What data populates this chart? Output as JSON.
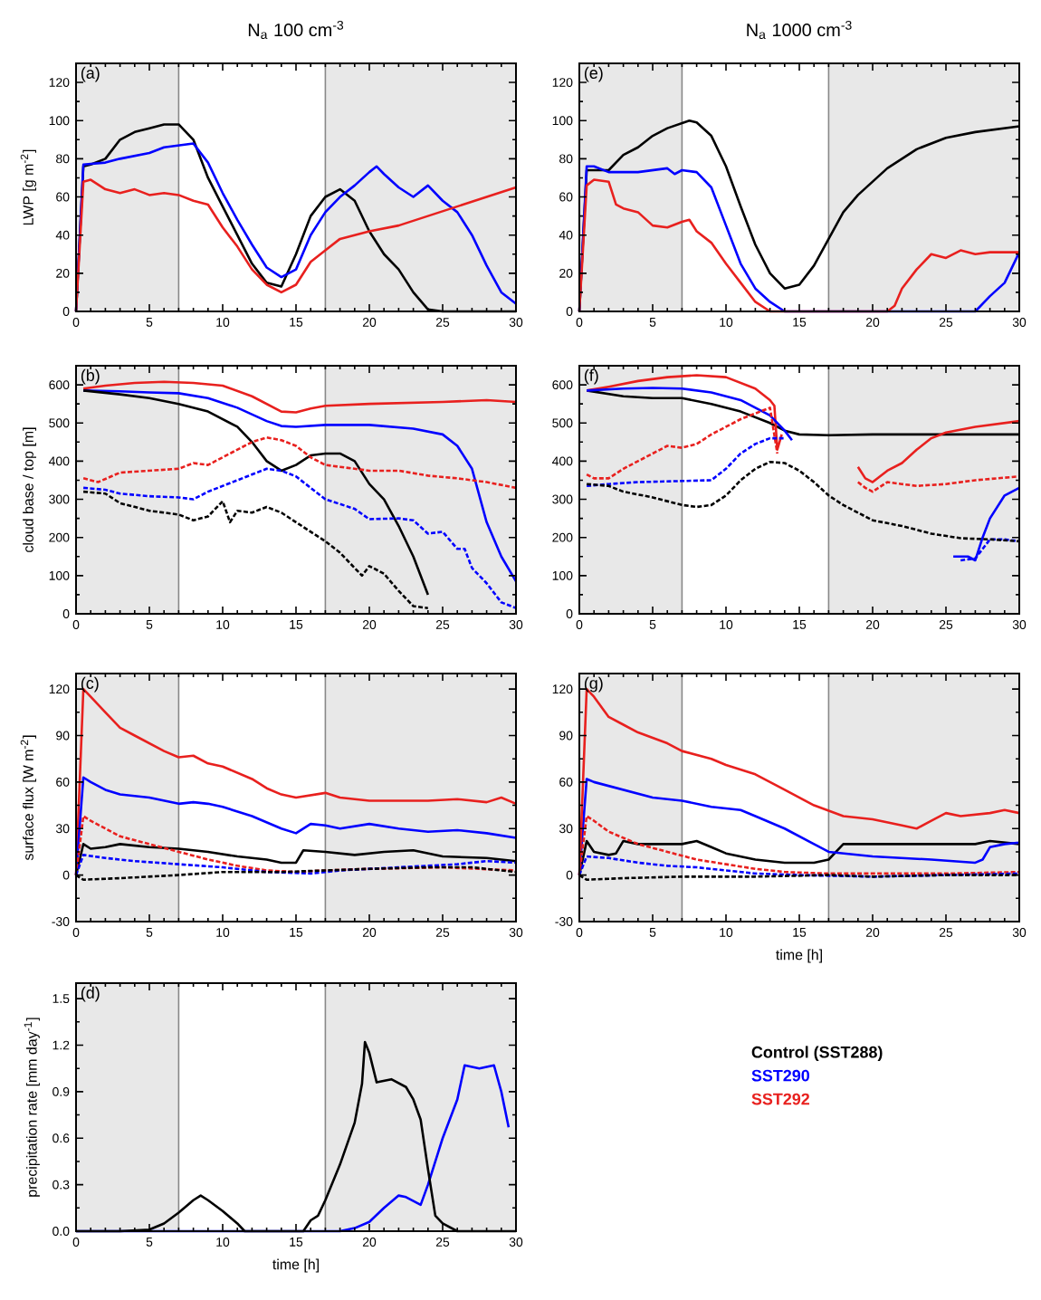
{
  "chart_data": [
    {
      "type": "line",
      "title": "N$_{a}$ 100 cm$^{-3}$",
      "ylabel": "LWP [g m$^{-2}$]",
      "annotations": [
        "(a)"
      ],
      "xlim": [
        0,
        30
      ],
      "ylim": [
        0,
        130
      ],
      "xticks": [
        0,
        5,
        10,
        15,
        20,
        25,
        30
      ],
      "yticks": [
        0,
        20,
        40,
        60,
        80,
        100,
        120
      ],
      "bands": [
        {
          "axis": "x",
          "from": 0,
          "to": 7,
          "color": "#e8e8e8"
        },
        {
          "axis": "x",
          "from": 17,
          "to": 30,
          "color": "#e8e8e8"
        }
      ],
      "ref_lines": [
        {
          "axis": "x",
          "value": 7,
          "color": "#888888"
        },
        {
          "axis": "x",
          "value": 17,
          "color": "#888888"
        }
      ],
      "series": [
        {
          "color": "#000000",
          "x": [
            0,
            0.5,
            1,
            2,
            3,
            4,
            5,
            6,
            7,
            8,
            9,
            10,
            11,
            12,
            13,
            14,
            15,
            16,
            17,
            18,
            19,
            20,
            21,
            22,
            23,
            24,
            25,
            30
          ],
          "values": [
            0,
            76,
            77,
            80,
            90,
            94,
            96,
            98,
            98,
            90,
            70,
            55,
            40,
            25,
            15,
            13,
            30,
            50,
            60,
            64,
            58,
            42,
            30,
            22,
            10,
            1,
            0,
            0
          ]
        },
        {
          "color": "#0000ff",
          "x": [
            0,
            0.5,
            2,
            3,
            5,
            6,
            8,
            9,
            10,
            11,
            12,
            13,
            14,
            15,
            16,
            17,
            18,
            19,
            20,
            20.5,
            21,
            22,
            23,
            24,
            25,
            26,
            27,
            28,
            29,
            30
          ],
          "values": [
            0,
            77,
            78,
            80,
            83,
            86,
            88,
            78,
            62,
            48,
            35,
            23,
            18,
            22,
            40,
            52,
            60,
            66,
            73,
            76,
            72,
            65,
            60,
            66,
            58,
            52,
            40,
            24,
            10,
            4
          ]
        },
        {
          "color": "#e8201e",
          "x": [
            0,
            0.5,
            1,
            2,
            3,
            4,
            5,
            6,
            7,
            8,
            9,
            10,
            11,
            12,
            13,
            14,
            15,
            16,
            17,
            18,
            19,
            20,
            22,
            24,
            26,
            28,
            30
          ],
          "values": [
            0,
            68,
            69,
            64,
            62,
            64,
            61,
            62,
            61,
            58,
            56,
            44,
            34,
            22,
            14,
            10,
            14,
            26,
            32,
            38,
            40,
            42,
            45,
            50,
            55,
            60,
            65
          ]
        }
      ]
    },
    {
      "type": "line",
      "ylabel": "cloud base / top [m]",
      "annotations": [
        "(b)"
      ],
      "xlim": [
        0,
        30
      ],
      "ylim": [
        0,
        650
      ],
      "xticks": [
        0,
        5,
        10,
        15,
        20,
        25,
        30
      ],
      "yticks": [
        0,
        100,
        200,
        300,
        400,
        500,
        600
      ],
      "bands": [
        {
          "axis": "x",
          "from": 0,
          "to": 7,
          "color": "#e8e8e8"
        },
        {
          "axis": "x",
          "from": 17,
          "to": 30,
          "color": "#e8e8e8"
        }
      ],
      "ref_lines": [
        {
          "axis": "x",
          "value": 7,
          "color": "#888888"
        },
        {
          "axis": "x",
          "value": 17,
          "color": "#888888"
        }
      ],
      "series": [
        {
          "color": "#e8201e",
          "line_style": "solid",
          "x": [
            0.5,
            2,
            4,
            6,
            8,
            10,
            12,
            13,
            14,
            15,
            16,
            17,
            20,
            25,
            28,
            30
          ],
          "values": [
            590,
            598,
            605,
            608,
            605,
            598,
            570,
            550,
            530,
            528,
            538,
            545,
            550,
            555,
            560,
            555
          ]
        },
        {
          "color": "#0000ff",
          "line_style": "solid",
          "x": [
            0.5,
            3,
            5,
            7,
            9,
            11,
            13,
            14,
            15,
            17,
            20,
            23,
            25,
            26,
            27,
            28,
            29,
            30
          ],
          "values": [
            585,
            583,
            580,
            578,
            565,
            540,
            505,
            492,
            490,
            495,
            495,
            485,
            470,
            440,
            380,
            240,
            150,
            85
          ]
        },
        {
          "color": "#000000",
          "line_style": "solid",
          "x": [
            0.5,
            3,
            5,
            7,
            9,
            11,
            12,
            13,
            14,
            15,
            16,
            17,
            18,
            19,
            20,
            21,
            22,
            23,
            24
          ],
          "values": [
            585,
            575,
            565,
            550,
            530,
            490,
            450,
            400,
            375,
            390,
            415,
            420,
            420,
            400,
            340,
            300,
            230,
            150,
            50
          ]
        },
        {
          "color": "#e8201e",
          "line_style": "dashed",
          "x": [
            0.5,
            1.5,
            3,
            5,
            7,
            8,
            9,
            10,
            12,
            13,
            14,
            15,
            16,
            17,
            18,
            20,
            22,
            24,
            26,
            28,
            30
          ],
          "values": [
            355,
            345,
            370,
            375,
            380,
            395,
            390,
            410,
            450,
            462,
            455,
            440,
            410,
            390,
            385,
            375,
            375,
            362,
            355,
            345,
            330
          ]
        },
        {
          "color": "#0000ff",
          "line_style": "dashed",
          "x": [
            0.5,
            2,
            3,
            5,
            7,
            8,
            9,
            11,
            13,
            14,
            15,
            16,
            17,
            19,
            20,
            22,
            23,
            24,
            25,
            26,
            26.5,
            27,
            28,
            29,
            30
          ],
          "values": [
            330,
            325,
            315,
            308,
            305,
            300,
            320,
            350,
            380,
            375,
            360,
            330,
            300,
            275,
            248,
            250,
            245,
            210,
            215,
            170,
            170,
            120,
            80,
            30,
            15
          ]
        },
        {
          "color": "#000000",
          "line_style": "dashed",
          "x": [
            0.5,
            2,
            3,
            5,
            7,
            8,
            9,
            10,
            10.5,
            11,
            12,
            13,
            14,
            15,
            16,
            17,
            18,
            19,
            19.5,
            20,
            21,
            22,
            23,
            24
          ],
          "values": [
            320,
            315,
            290,
            270,
            260,
            245,
            255,
            295,
            240,
            270,
            265,
            280,
            265,
            240,
            215,
            190,
            160,
            120,
            100,
            125,
            105,
            60,
            20,
            15
          ]
        }
      ]
    },
    {
      "type": "line",
      "ylabel": "surface flux [W m$^{-2}$]",
      "annotations": [
        "(c)"
      ],
      "xlim": [
        0,
        30
      ],
      "ylim": [
        -30,
        130
      ],
      "xticks": [
        0,
        5,
        10,
        15,
        20,
        25,
        30
      ],
      "yticks": [
        -30,
        0,
        30,
        60,
        90,
        120
      ],
      "bands": [
        {
          "axis": "x",
          "from": 0,
          "to": 7,
          "color": "#e8e8e8"
        },
        {
          "axis": "x",
          "from": 17,
          "to": 30,
          "color": "#e8e8e8"
        }
      ],
      "ref_lines": [
        {
          "axis": "x",
          "value": 7,
          "color": "#888888"
        },
        {
          "axis": "x",
          "value": 17,
          "color": "#888888"
        }
      ],
      "series": [
        {
          "color": "#e8201e",
          "line_style": "solid",
          "x": [
            0,
            0.5,
            1,
            2,
            3,
            4,
            5,
            6,
            7,
            8,
            9,
            10,
            12,
            13,
            14,
            15,
            17,
            18,
            20,
            22,
            24,
            26,
            28,
            29,
            30
          ],
          "values": [
            0,
            120,
            115,
            105,
            95,
            90,
            85,
            80,
            76,
            77,
            72,
            70,
            62,
            56,
            52,
            50,
            53,
            50,
            48,
            48,
            48,
            49,
            47,
            50,
            46
          ]
        },
        {
          "color": "#0000ff",
          "line_style": "solid",
          "x": [
            0,
            0.5,
            1,
            2,
            3,
            5,
            7,
            8,
            9,
            10,
            12,
            14,
            15,
            16,
            17,
            18,
            20,
            22,
            24,
            26,
            28,
            30
          ],
          "values": [
            0,
            63,
            60,
            55,
            52,
            50,
            46,
            47,
            46,
            44,
            38,
            30,
            27,
            33,
            32,
            30,
            33,
            30,
            28,
            29,
            27,
            24
          ]
        },
        {
          "color": "#000000",
          "line_style": "solid",
          "x": [
            0,
            0.5,
            1,
            2,
            3,
            5,
            7,
            9,
            11,
            13,
            14,
            15,
            15.5,
            17,
            19,
            21,
            23,
            25,
            28,
            30
          ],
          "values": [
            0,
            20,
            17,
            18,
            20,
            18,
            17,
            15,
            12,
            10,
            8,
            8,
            16,
            15,
            13,
            15,
            16,
            12,
            11,
            9
          ]
        },
        {
          "color": "#e8201e",
          "line_style": "dashed",
          "x": [
            0,
            0.5,
            1,
            2,
            3,
            5,
            7,
            9,
            11,
            13,
            15,
            17,
            20,
            25,
            30
          ],
          "values": [
            0,
            38,
            35,
            30,
            25,
            20,
            15,
            10,
            6,
            3,
            2,
            3,
            4,
            5,
            3
          ]
        },
        {
          "color": "#0000ff",
          "line_style": "dashed",
          "x": [
            0,
            0.5,
            2,
            4,
            7,
            10,
            13,
            16,
            18,
            22,
            26,
            28,
            30
          ],
          "values": [
            0,
            13,
            11,
            9,
            7,
            5,
            2,
            1,
            3,
            5,
            7,
            9,
            8
          ]
        },
        {
          "color": "#000000",
          "line_style": "dashed",
          "x": [
            0,
            0.5,
            3,
            7,
            10,
            14,
            17,
            20,
            24,
            27,
            30
          ],
          "values": [
            0,
            -3,
            -2,
            0,
            2,
            2,
            3,
            4,
            5,
            5,
            2
          ]
        }
      ]
    },
    {
      "type": "line",
      "xlabel": "time [h]",
      "ylabel": "precipitation rate [mm day$^{-1}$]",
      "annotations": [
        "(d)"
      ],
      "xlim": [
        0,
        30
      ],
      "ylim": [
        0,
        1.6
      ],
      "xticks": [
        0,
        5,
        10,
        15,
        20,
        25,
        30
      ],
      "yticks": [
        {
          "value": 0,
          "label": "0.0"
        },
        0.3,
        0.6,
        0.9,
        1.2,
        1.5
      ],
      "bands": [
        {
          "axis": "x",
          "from": 0,
          "to": 7,
          "color": "#e8e8e8"
        },
        {
          "axis": "x",
          "from": 17,
          "to": 30,
          "color": "#e8e8e8"
        }
      ],
      "ref_lines": [
        {
          "axis": "x",
          "value": 7,
          "color": "#888888"
        },
        {
          "axis": "x",
          "value": 17,
          "color": "#888888"
        }
      ],
      "series": [
        {
          "color": "#0000ff",
          "x": [
            0,
            18,
            19,
            20,
            21,
            22,
            22.5,
            23.5,
            24,
            25,
            26,
            26.5,
            27.5,
            28.5,
            29,
            29.5
          ],
          "values": [
            0,
            0,
            0.02,
            0.06,
            0.15,
            0.23,
            0.22,
            0.17,
            0.3,
            0.6,
            0.85,
            1.07,
            1.05,
            1.07,
            0.9,
            0.67
          ]
        },
        {
          "color": "#000000",
          "x": [
            0,
            3,
            5,
            6,
            7,
            8,
            8.5,
            9,
            10,
            11,
            11.5,
            15.5,
            16,
            16.5,
            17,
            18,
            19,
            19.5,
            19.7,
            20,
            20.5,
            21.5,
            22.5,
            23,
            23.5,
            24,
            24.5,
            25,
            26,
            30
          ],
          "values": [
            0,
            0,
            0.01,
            0.05,
            0.12,
            0.2,
            0.23,
            0.2,
            0.13,
            0.05,
            0,
            0,
            0.07,
            0.1,
            0.2,
            0.43,
            0.7,
            0.95,
            1.22,
            1.15,
            0.96,
            0.98,
            0.93,
            0.85,
            0.72,
            0.4,
            0.1,
            0.05,
            0,
            0
          ]
        }
      ]
    },
    {
      "type": "line",
      "title": "N$_{a}$ 1000 cm$^{-3}$",
      "annotations": [
        "(e)"
      ],
      "xlim": [
        0,
        30
      ],
      "ylim": [
        0,
        130
      ],
      "xticks": [
        0,
        5,
        10,
        15,
        20,
        25,
        30
      ],
      "yticks": [
        0,
        20,
        40,
        60,
        80,
        100,
        120
      ],
      "bands": [
        {
          "axis": "x",
          "from": 0,
          "to": 7,
          "color": "#e8e8e8"
        },
        {
          "axis": "x",
          "from": 17,
          "to": 30,
          "color": "#e8e8e8"
        }
      ],
      "ref_lines": [
        {
          "axis": "x",
          "value": 7,
          "color": "#888888"
        },
        {
          "axis": "x",
          "value": 17,
          "color": "#888888"
        }
      ],
      "series": [
        {
          "color": "#000000",
          "x": [
            0,
            0.5,
            2,
            3,
            4,
            5,
            6,
            7.5,
            8,
            9,
            10,
            11,
            12,
            13,
            14,
            15,
            16,
            17,
            18,
            19,
            20,
            21,
            22,
            23,
            25,
            27,
            30
          ],
          "values": [
            0,
            74,
            74,
            82,
            86,
            92,
            96,
            100,
            99,
            92,
            76,
            55,
            35,
            20,
            12,
            14,
            24,
            38,
            52,
            61,
            68,
            75,
            80,
            85,
            91,
            94,
            97
          ]
        },
        {
          "color": "#0000ff",
          "x": [
            0,
            0.5,
            1,
            2,
            4,
            6,
            6.5,
            7,
            8,
            9,
            10,
            11,
            12,
            13,
            14,
            27,
            28,
            29,
            30
          ],
          "values": [
            0,
            76,
            76,
            73,
            73,
            75,
            72,
            74,
            73,
            65,
            45,
            25,
            12,
            5,
            0,
            0,
            8,
            15,
            31
          ]
        },
        {
          "color": "#e8201e",
          "x": [
            0,
            0.5,
            1,
            2,
            2.5,
            3,
            4,
            5,
            6,
            7,
            7.5,
            8,
            9,
            10,
            11,
            12,
            13,
            21,
            21.5,
            22,
            23,
            24,
            25,
            26,
            27,
            28,
            30
          ],
          "values": [
            0,
            66,
            69,
            68,
            56,
            54,
            52,
            45,
            44,
            47,
            48,
            42,
            36,
            25,
            15,
            5,
            0,
            0,
            3,
            12,
            22,
            30,
            28,
            32,
            30,
            31,
            31
          ]
        }
      ]
    },
    {
      "type": "line",
      "annotations": [
        "(f)"
      ],
      "xlim": [
        0,
        30
      ],
      "ylim": [
        0,
        650
      ],
      "xticks": [
        0,
        5,
        10,
        15,
        20,
        25,
        30
      ],
      "yticks": [
        0,
        100,
        200,
        300,
        400,
        500,
        600
      ],
      "bands": [
        {
          "axis": "x",
          "from": 0,
          "to": 7,
          "color": "#e8e8e8"
        },
        {
          "axis": "x",
          "from": 17,
          "to": 30,
          "color": "#e8e8e8"
        }
      ],
      "ref_lines": [
        {
          "axis": "x",
          "value": 7,
          "color": "#888888"
        },
        {
          "axis": "x",
          "value": 17,
          "color": "#888888"
        }
      ],
      "series": [
        {
          "color": "#000000",
          "line_style": "solid",
          "x": [
            0.5,
            3,
            5,
            7,
            9,
            11,
            13,
            14,
            15,
            17,
            20,
            25,
            30
          ],
          "values": [
            585,
            570,
            565,
            565,
            550,
            530,
            500,
            480,
            470,
            468,
            470,
            470,
            470
          ]
        },
        {
          "color": "#e8201e",
          "line_style": "solid",
          "x": [
            0.5,
            2,
            4,
            6,
            8,
            10,
            12,
            13,
            13.3,
            13.5,
            13.8,
            16,
            19,
            19.5,
            20,
            21,
            22,
            23,
            24,
            25,
            27,
            30
          ],
          "values": [
            585,
            595,
            610,
            620,
            625,
            620,
            590,
            560,
            545,
            430,
            470,
            null,
            385,
            355,
            345,
            375,
            395,
            430,
            460,
            475,
            490,
            505
          ]
        },
        {
          "color": "#0000ff",
          "line_style": "solid",
          "x": [
            0.5,
            3,
            5,
            7,
            9,
            11,
            13,
            14,
            14.5,
            20,
            25.5,
            26.5,
            27,
            27.5,
            28,
            29,
            30
          ],
          "values": [
            585,
            590,
            592,
            590,
            580,
            560,
            520,
            480,
            455,
            null,
            150,
            150,
            140,
            200,
            250,
            310,
            330
          ]
        },
        {
          "color": "#e8201e",
          "line_style": "dashed",
          "x": [
            0.5,
            1,
            2,
            3,
            4,
            5,
            6,
            7,
            8,
            9,
            10,
            11,
            12,
            13,
            13.5,
            16,
            19,
            19.5,
            20,
            21,
            22,
            23,
            25,
            27,
            30
          ],
          "values": [
            365,
            355,
            355,
            380,
            400,
            420,
            440,
            435,
            445,
            470,
            490,
            510,
            525,
            540,
            420,
            null,
            345,
            330,
            320,
            345,
            340,
            335,
            340,
            350,
            360
          ]
        },
        {
          "color": "#0000ff",
          "line_style": "dashed",
          "x": [
            0.5,
            2,
            4,
            7,
            9,
            10,
            11,
            12,
            13,
            14,
            20,
            26,
            27,
            28,
            29,
            30
          ],
          "values": [
            335,
            340,
            345,
            348,
            350,
            380,
            420,
            445,
            460,
            460,
            null,
            140,
            145,
            195,
            195,
            190
          ]
        },
        {
          "color": "#000000",
          "line_style": "dashed",
          "x": [
            0.5,
            2,
            3,
            5,
            7,
            8,
            9,
            10,
            11,
            12,
            13,
            14,
            15,
            16,
            17,
            18,
            19,
            20,
            22,
            24,
            26,
            28,
            30
          ],
          "values": [
            340,
            335,
            320,
            305,
            285,
            280,
            285,
            310,
            350,
            380,
            398,
            395,
            375,
            345,
            310,
            285,
            265,
            245,
            230,
            210,
            198,
            195,
            190
          ]
        }
      ]
    },
    {
      "type": "line",
      "xlabel": "time [h]",
      "annotations": [
        "(g)"
      ],
      "legend": "bottom",
      "xlim": [
        0,
        30
      ],
      "ylim": [
        -30,
        130
      ],
      "xticks": [
        0,
        5,
        10,
        15,
        20,
        25,
        30
      ],
      "yticks": [
        -30,
        0,
        30,
        60,
        90,
        120
      ],
      "bands": [
        {
          "axis": "x",
          "from": 0,
          "to": 7,
          "color": "#e8e8e8"
        },
        {
          "axis": "x",
          "from": 17,
          "to": 30,
          "color": "#e8e8e8"
        }
      ],
      "ref_lines": [
        {
          "axis": "x",
          "value": 7,
          "color": "#888888"
        },
        {
          "axis": "x",
          "value": 17,
          "color": "#888888"
        }
      ],
      "series": [
        {
          "name": "Control (SST288)",
          "color": "#000000",
          "line_style": "solid",
          "x": [
            0,
            0.5,
            1,
            2,
            2.5,
            3,
            4,
            6,
            7,
            8,
            9,
            10,
            12,
            14,
            16,
            17,
            18,
            20,
            22,
            25,
            27,
            28,
            30
          ],
          "values": [
            0,
            22,
            15,
            13,
            14,
            22,
            20,
            20,
            20,
            22,
            18,
            14,
            10,
            8,
            8,
            10,
            20,
            20,
            20,
            20,
            20,
            22,
            20
          ]
        },
        {
          "name": "SST290",
          "color": "#0000ff",
          "line_style": "solid",
          "x": [
            0,
            0.5,
            1,
            3,
            5,
            7,
            9,
            11,
            12,
            14,
            16,
            17,
            20,
            24,
            27,
            27.5,
            28,
            29,
            30
          ],
          "values": [
            0,
            62,
            60,
            55,
            50,
            48,
            44,
            42,
            38,
            30,
            20,
            15,
            12,
            10,
            8,
            10,
            18,
            20,
            21
          ]
        },
        {
          "name": "SST292",
          "color": "#e8201e",
          "line_style": "solid",
          "x": [
            0,
            0.5,
            1,
            2,
            3,
            4,
            6,
            7,
            9,
            10,
            12,
            14,
            16,
            18,
            20,
            22,
            23,
            24,
            25,
            26,
            28,
            29,
            30
          ],
          "values": [
            0,
            120,
            115,
            102,
            97,
            92,
            85,
            80,
            75,
            71,
            65,
            55,
            45,
            38,
            36,
            32,
            30,
            35,
            40,
            38,
            40,
            42,
            40
          ]
        },
        {
          "color": "#e8201e",
          "line_style": "dashed",
          "x": [
            0,
            0.5,
            1,
            2,
            4,
            6,
            8,
            10,
            12,
            14,
            17,
            20,
            25,
            30
          ],
          "values": [
            0,
            38,
            35,
            28,
            20,
            15,
            10,
            7,
            4,
            2,
            1,
            1,
            1,
            2
          ]
        },
        {
          "color": "#0000ff",
          "line_style": "dashed",
          "x": [
            0,
            0.5,
            2,
            4,
            6,
            8,
            10,
            12,
            15,
            20,
            25,
            30
          ],
          "values": [
            0,
            12,
            11,
            8,
            6,
            5,
            3,
            1,
            0,
            -1,
            0,
            1
          ]
        },
        {
          "color": "#000000",
          "line_style": "dashed",
          "x": [
            0,
            0.5,
            3,
            7,
            12,
            17,
            20,
            25,
            30
          ],
          "values": [
            0,
            -3,
            -2,
            -1,
            -1,
            0,
            -1,
            0,
            0
          ]
        }
      ]
    }
  ]
}
